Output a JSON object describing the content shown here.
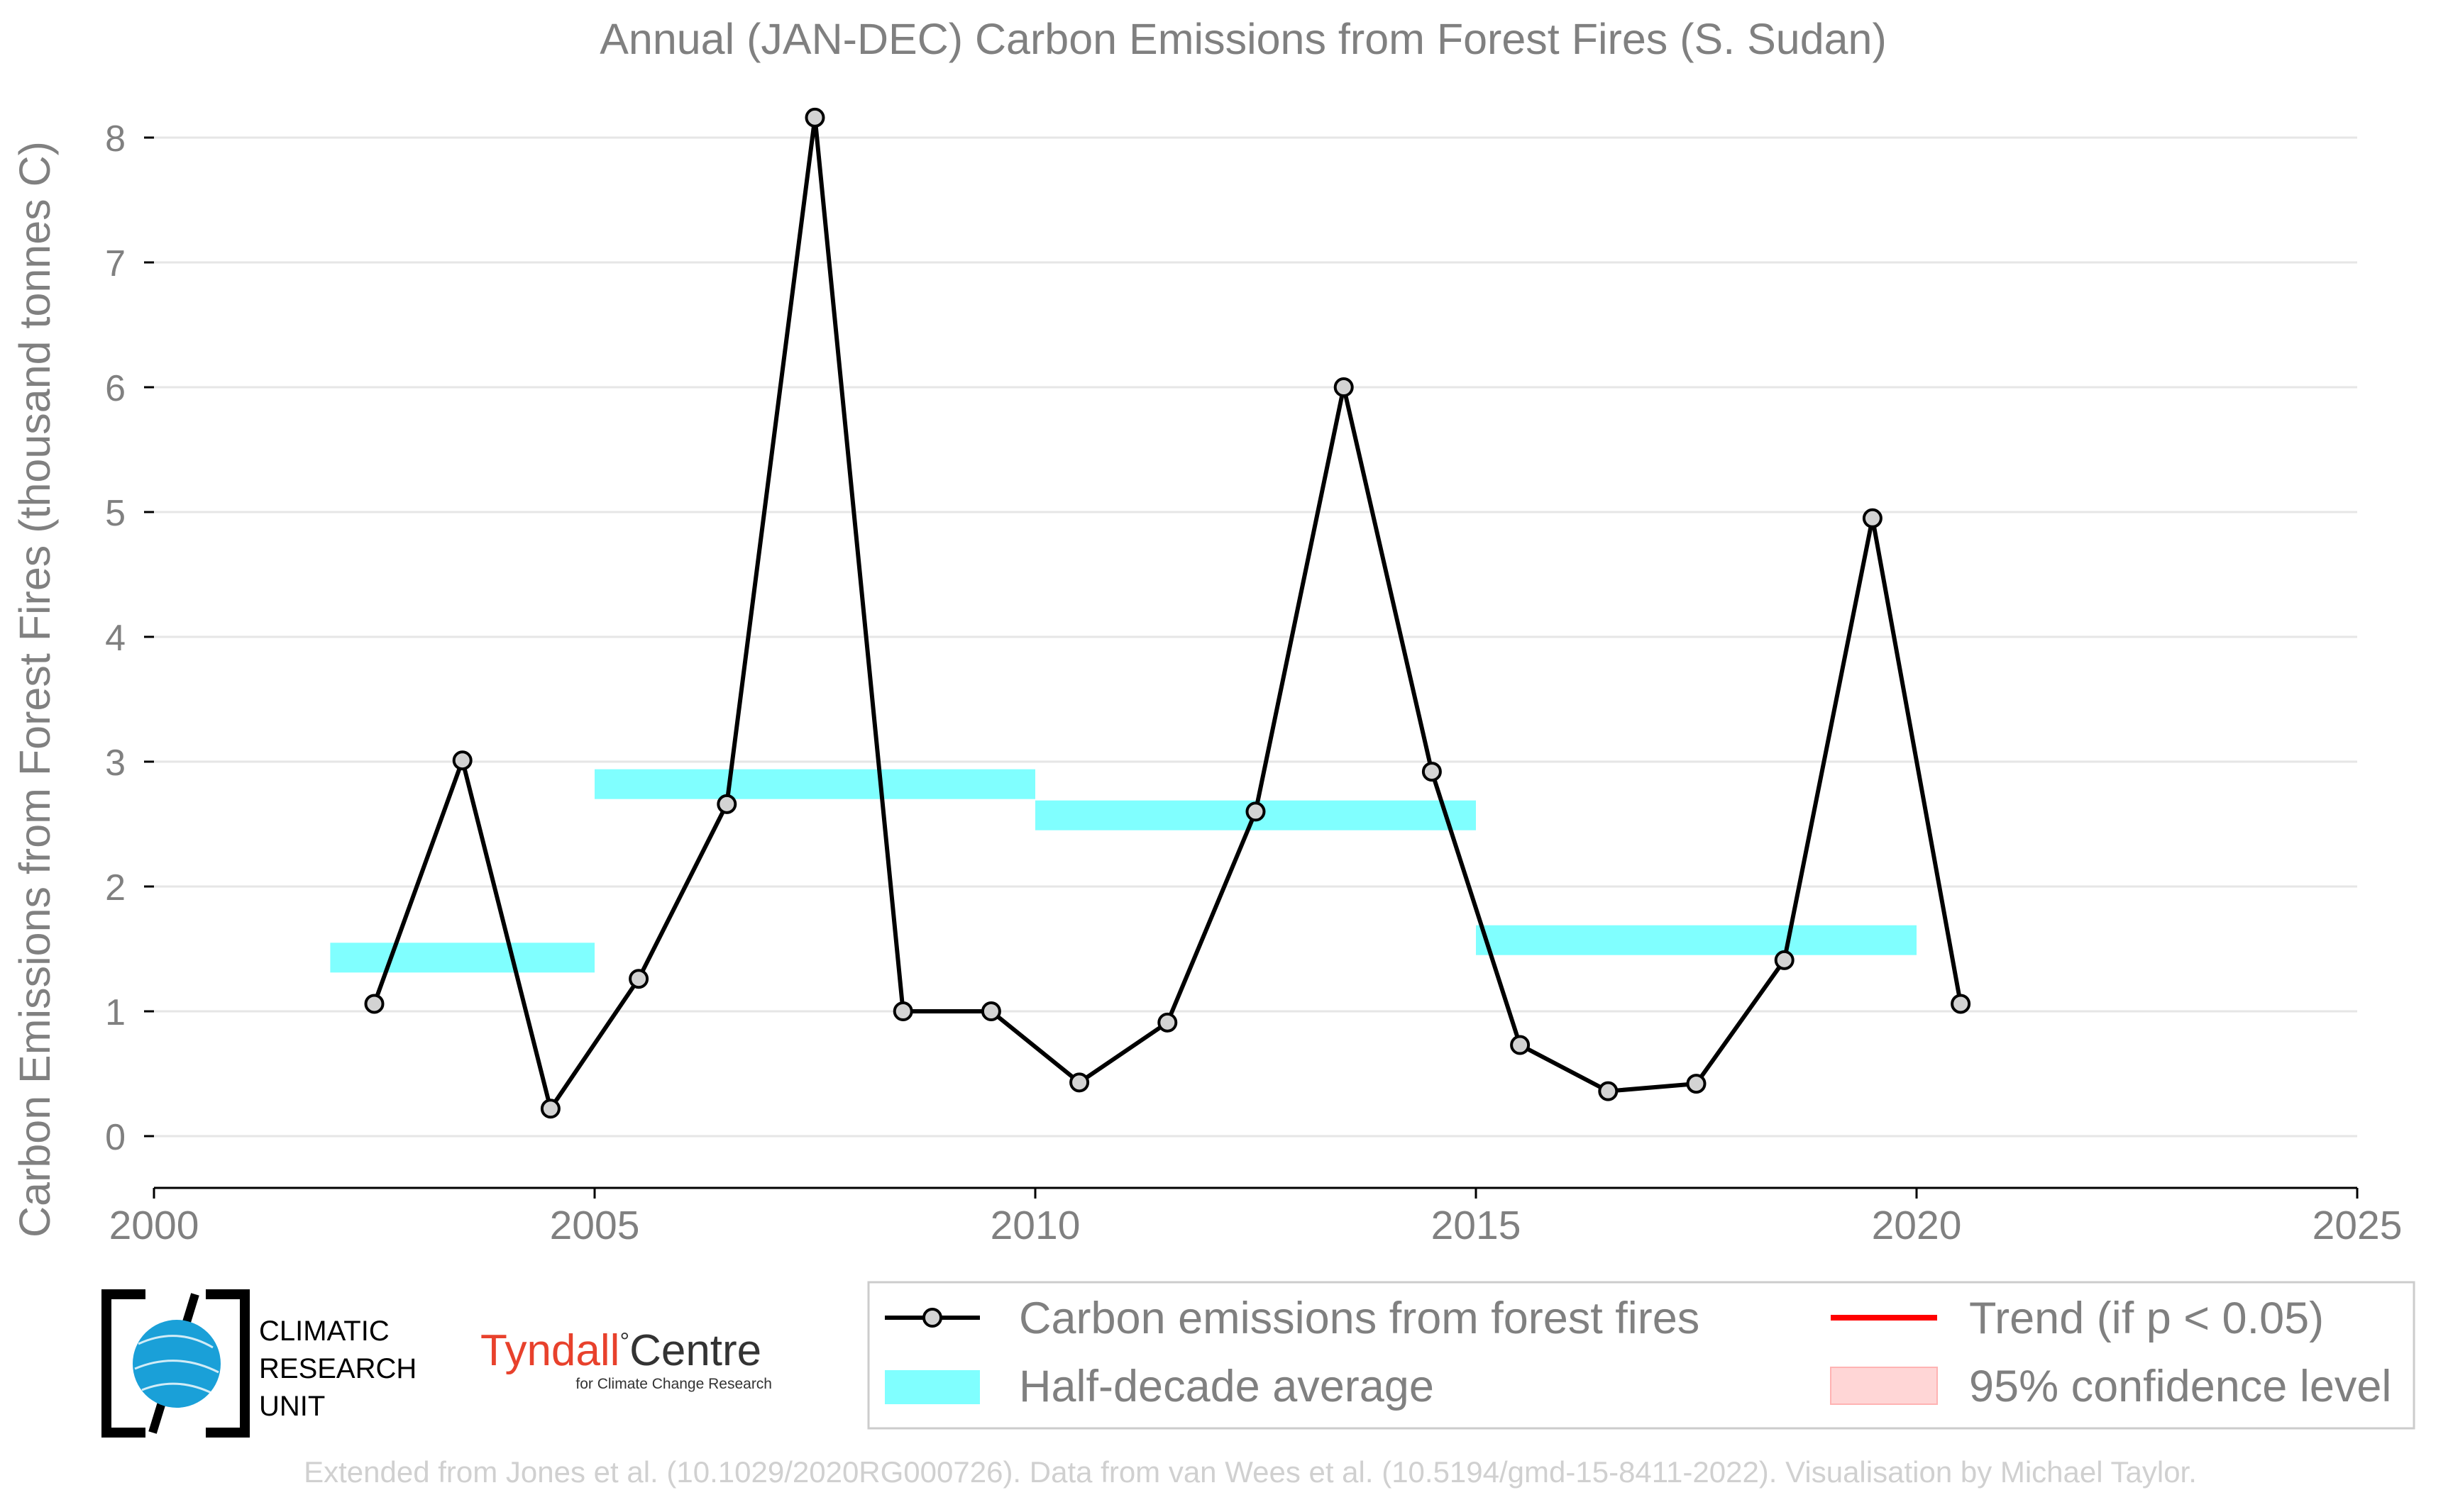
{
  "chart_data": {
    "type": "line",
    "title": "Annual (JAN-DEC) Carbon Emissions from Forest Fires (S. Sudan)",
    "ylabel": "Carbon Emissions from Forest Fires (thousand tonnes C)",
    "xlabel": "",
    "xlim": [
      2000,
      2025
    ],
    "ylim": [
      -0.4,
      8.4
    ],
    "xticks": [
      "2000",
      "2005",
      "2010",
      "2015",
      "2020",
      "2025"
    ],
    "yticks": [
      "0",
      "1",
      "2",
      "3",
      "4",
      "5",
      "6",
      "7",
      "8"
    ],
    "grid": "horizontal",
    "series": [
      {
        "name": "Carbon emissions from forest fires",
        "color": "#000000",
        "marker_color": "#d3d3d3",
        "x": [
          2002.5,
          2003.5,
          2004.5,
          2005.5,
          2006.5,
          2007.5,
          2008.5,
          2009.5,
          2010.5,
          2011.5,
          2012.5,
          2013.5,
          2014.5,
          2015.5,
          2016.5,
          2017.5,
          2018.5,
          2019.5,
          2020.5
        ],
        "values": [
          1.06,
          3.01,
          0.22,
          1.26,
          2.66,
          8.16,
          1.0,
          1.0,
          0.43,
          0.91,
          2.6,
          6.0,
          2.92,
          0.73,
          0.36,
          0.42,
          1.41,
          4.95,
          1.06
        ]
      }
    ],
    "half_decade_average": {
      "name": "Half-decade average",
      "color": "#80ffff",
      "segments": [
        {
          "start": 2002,
          "end": 2005,
          "value": 1.43
        },
        {
          "start": 2005,
          "end": 2010,
          "value": 2.82
        },
        {
          "start": 2010,
          "end": 2015,
          "value": 2.57
        },
        {
          "start": 2015,
          "end": 2020,
          "value": 1.57
        }
      ]
    },
    "legend": {
      "placement": "bottom-right",
      "items": [
        {
          "label": "Carbon emissions from forest fires",
          "kind": "line-marker",
          "color": "#000000"
        },
        {
          "label": "Trend (if p < 0.05)",
          "kind": "line",
          "color": "#ff0000"
        },
        {
          "label": "Half-decade average",
          "kind": "band",
          "color": "#80ffff"
        },
        {
          "label": "95% confidence level",
          "kind": "patch",
          "color": "#ffd6d6"
        }
      ]
    }
  },
  "logos": {
    "cru_lines": [
      "CLIMATIC",
      "RESEARCH",
      "UNIT"
    ],
    "tyndall_name": "Tyndall",
    "tyndall_degree": "°",
    "tyndall_centre": "Centre",
    "tyndall_sub": "for Climate Change Research"
  },
  "credit": "Extended from Jones et al. (10.1029/2020RG000726). Data from van Wees et al. (10.5194/gmd-15-8411-2022). Visualisation by Michael Taylor."
}
